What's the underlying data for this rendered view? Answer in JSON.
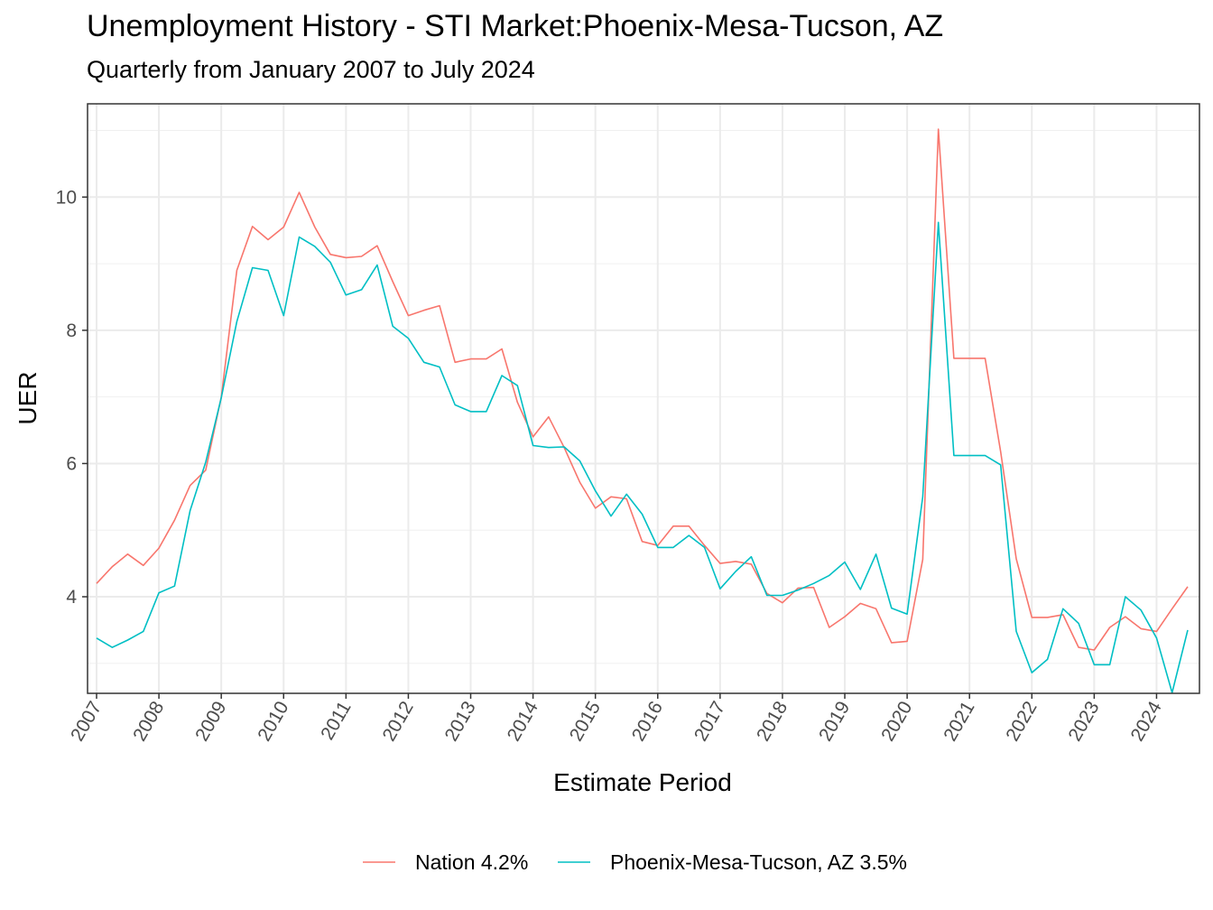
{
  "chart_data": {
    "type": "line",
    "title": "Unemployment History - STI Market:Phoenix-Mesa-Tucson, AZ",
    "subtitle": "Quarterly from January 2007 to July 2024",
    "xlabel": "Estimate Period",
    "ylabel": "UER",
    "x_ticks": [
      "2007",
      "2008",
      "2009",
      "2010",
      "2011",
      "2012",
      "2013",
      "2014",
      "2015",
      "2016",
      "2017",
      "2018",
      "2019",
      "2020",
      "2021",
      "2022",
      "2023",
      "2024"
    ],
    "y_ticks": [
      4,
      6,
      8,
      10
    ],
    "xlim": [
      2007,
      2024.5
    ],
    "ylim": [
      2.55,
      11.4
    ],
    "grid": true,
    "legend_position": "bottom",
    "x": [
      2007,
      2007.25,
      2007.5,
      2007.75,
      2008,
      2008.25,
      2008.5,
      2008.75,
      2009,
      2009.25,
      2009.5,
      2009.75,
      2010,
      2010.25,
      2010.5,
      2010.75,
      2011,
      2011.25,
      2011.5,
      2011.75,
      2012,
      2012.25,
      2012.5,
      2012.75,
      2013,
      2013.25,
      2013.5,
      2013.75,
      2014,
      2014.25,
      2014.5,
      2014.75,
      2015,
      2015.25,
      2015.5,
      2015.75,
      2016,
      2016.25,
      2016.5,
      2016.75,
      2017,
      2017.25,
      2017.5,
      2017.75,
      2018,
      2018.25,
      2018.5,
      2018.75,
      2019,
      2019.25,
      2019.5,
      2019.75,
      2020,
      2020.25,
      2020.5,
      2020.75,
      2021,
      2021.25,
      2021.5,
      2021.75,
      2022,
      2022.25,
      2022.5,
      2022.75,
      2023,
      2023.25,
      2023.5,
      2023.75,
      2024,
      2024.25,
      2024.5
    ],
    "series": [
      {
        "name": "Nation 4.2%",
        "color": "#f8766d",
        "values": [
          4.2,
          4.45,
          4.64,
          4.47,
          4.73,
          5.15,
          5.67,
          5.9,
          7.0,
          8.9,
          9.56,
          9.36,
          9.55,
          10.07,
          9.55,
          9.14,
          9.09,
          9.11,
          9.27,
          8.73,
          8.22,
          8.3,
          8.37,
          7.52,
          7.57,
          7.57,
          7.72,
          6.92,
          6.4,
          6.7,
          6.24,
          5.72,
          5.33,
          5.5,
          5.47,
          4.83,
          4.77,
          5.06,
          5.06,
          4.77,
          4.5,
          4.53,
          4.49,
          4.05,
          3.91,
          4.13,
          4.14,
          3.54,
          3.7,
          3.9,
          3.82,
          3.31,
          3.33,
          4.56,
          11.02,
          7.58,
          7.58,
          7.58,
          6.18,
          4.57,
          3.69,
          3.69,
          3.73,
          3.24,
          3.2,
          3.54,
          3.7,
          3.52,
          3.48,
          3.82,
          4.15
        ]
      },
      {
        "name": "Phoenix-Mesa-Tucson, AZ 3.5%",
        "color": "#00bfc4",
        "values": [
          3.38,
          3.24,
          3.35,
          3.48,
          4.06,
          4.16,
          5.29,
          6.02,
          6.99,
          8.13,
          8.94,
          8.9,
          8.22,
          9.4,
          9.26,
          9.02,
          8.53,
          8.61,
          8.98,
          8.06,
          7.88,
          7.52,
          7.45,
          6.88,
          6.78,
          6.78,
          7.32,
          7.17,
          6.27,
          6.24,
          6.25,
          6.04,
          5.59,
          5.21,
          5.54,
          5.24,
          4.74,
          4.74,
          4.92,
          4.74,
          4.12,
          4.38,
          4.6,
          4.02,
          4.02,
          4.1,
          4.2,
          4.32,
          4.52,
          4.11,
          4.64,
          3.83,
          3.74,
          5.5,
          9.62,
          6.12,
          6.12,
          6.12,
          5.98,
          3.48,
          2.86,
          3.06,
          3.82,
          3.6,
          2.98,
          2.98,
          4.0,
          3.8,
          3.38,
          2.56,
          3.5
        ]
      }
    ]
  }
}
